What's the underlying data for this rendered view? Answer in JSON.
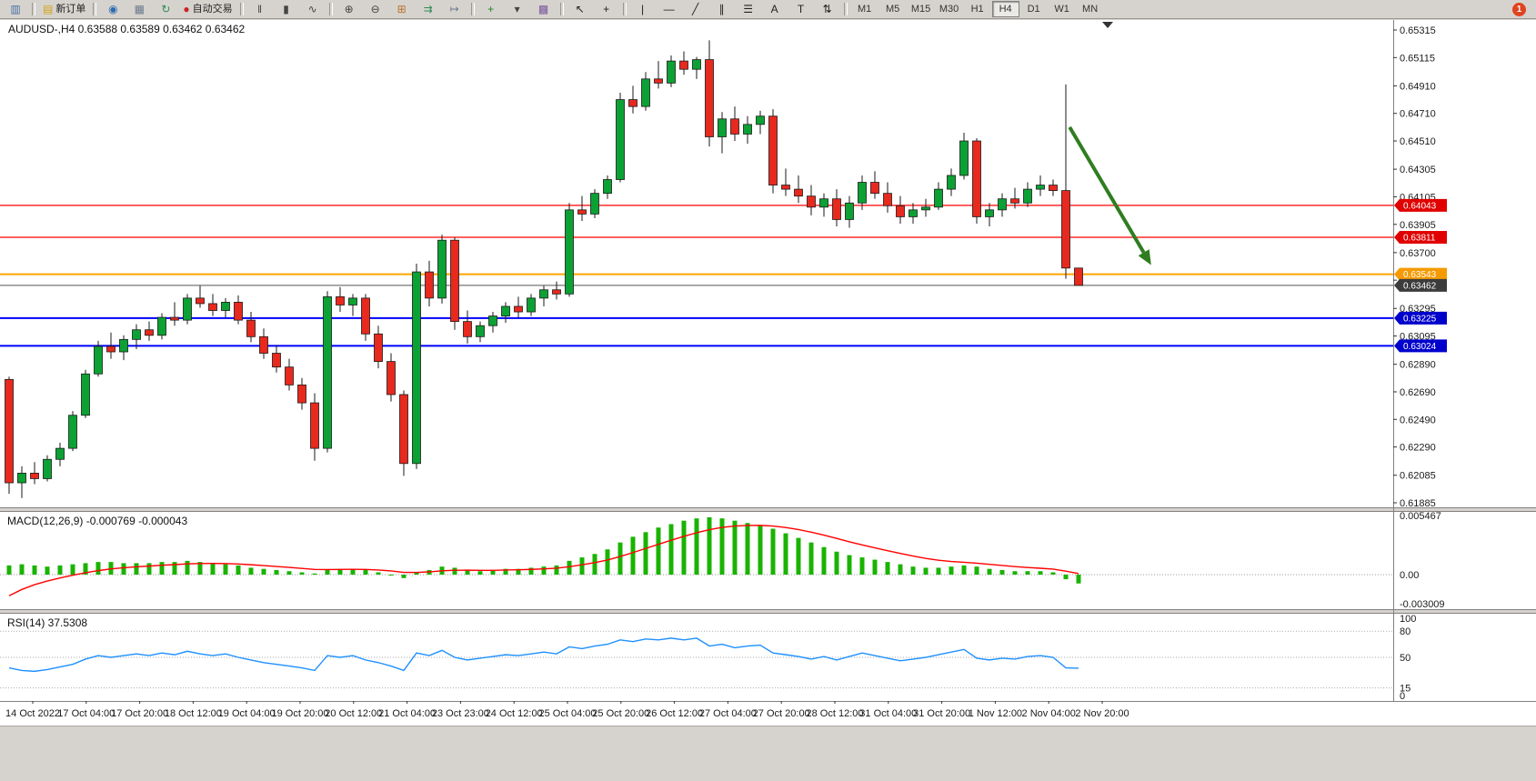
{
  "toolbar": {
    "buttons": [
      {
        "name": "new-chart-button",
        "glyph": "▥",
        "color": "#4a6fa5"
      },
      {
        "name": "sep"
      },
      {
        "name": "new-order-button",
        "glyph": "▤",
        "color": "#d4a017",
        "label": "新订单"
      },
      {
        "name": "sep"
      },
      {
        "name": "mql5-community-icon-button",
        "glyph": "◉",
        "color": "#2b6cb0"
      },
      {
        "name": "data-window-icon-button",
        "glyph": "▦",
        "color": "#6b7a8c"
      },
      {
        "name": "refresh-icon-button",
        "glyph": "↻",
        "color": "#2e8b57"
      },
      {
        "name": "autotrading-button",
        "glyph": "●",
        "color": "#cc2222",
        "label": "自动交易"
      },
      {
        "name": "sep"
      },
      {
        "name": "bar-chart-type-button",
        "glyph": "‖",
        "color": "#444444"
      },
      {
        "name": "candlestick-chart-type-button",
        "glyph": "▮",
        "color": "#444444"
      },
      {
        "name": "line-chart-type-button",
        "glyph": "∿",
        "color": "#444444"
      },
      {
        "name": "sep"
      },
      {
        "name": "zoom-in-button",
        "glyph": "⊕",
        "color": "#444444"
      },
      {
        "name": "zoom-out-button",
        "glyph": "⊖",
        "color": "#444444"
      },
      {
        "name": "tile-windows-button",
        "glyph": "⊞",
        "color": "#b8722c"
      },
      {
        "name": "auto-scroll-button",
        "glyph": "⇉",
        "color": "#2e8b57"
      },
      {
        "name": "chart-shift-button",
        "glyph": "↦",
        "color": "#6b7a8c"
      },
      {
        "name": "sep"
      },
      {
        "name": "indicators-list-button",
        "glyph": "+",
        "color": "#1d8a1d"
      },
      {
        "name": "periods-dropdown-button",
        "glyph": "▾",
        "color": "#444444"
      },
      {
        "name": "templates-button",
        "glyph": "▩",
        "color": "#7a5aa0"
      },
      {
        "name": "sep"
      },
      {
        "name": "cursor-button",
        "glyph": "↖",
        "color": "#222222"
      },
      {
        "name": "crosshair-button",
        "glyph": "+",
        "color": "#222222"
      },
      {
        "name": "sep"
      },
      {
        "name": "vertical-line-button",
        "glyph": "|",
        "color": "#222222"
      },
      {
        "name": "horizontal-line-button",
        "glyph": "—",
        "color": "#222222"
      },
      {
        "name": "trendline-button",
        "glyph": "╱",
        "color": "#222222"
      },
      {
        "name": "equidistant-channel-button",
        "glyph": "∥",
        "color": "#222222"
      },
      {
        "name": "fibonacci-button",
        "glyph": "☰",
        "color": "#222222"
      },
      {
        "name": "text-button",
        "glyph": "A",
        "color": "#222222"
      },
      {
        "name": "text-label-button",
        "glyph": "T",
        "color": "#222222"
      },
      {
        "name": "arrows-button",
        "glyph": "⇅",
        "color": "#222222"
      },
      {
        "name": "sep"
      }
    ],
    "timeframes": [
      "M1",
      "M5",
      "M15",
      "M30",
      "H1",
      "H4",
      "D1",
      "W1",
      "MN"
    ],
    "active_timeframe": "H4",
    "notification_badge": "1"
  },
  "chart": {
    "title_text": "AUDUSD-,H4 0.63588 0.63589 0.63462 0.63462",
    "symbol": "AUDUSD-",
    "period": "H4"
  },
  "indicators": {
    "macd_label": "MACD(12,26,9) -0.000769 -0.000043",
    "rsi_label": "RSI(14) 37.5308"
  },
  "chart_data": {
    "type": "candlestick",
    "symbol": "AUDUSD",
    "timeframe": "H4",
    "colors": {
      "bull": "#0CA134",
      "bear": "#E8291E",
      "wick": "#1a1a1a",
      "background": "#FFFFFF"
    },
    "price_axis": {
      "ticks": [
        0.65315,
        0.65115,
        0.6491,
        0.6471,
        0.6451,
        0.64305,
        0.64105,
        0.63905,
        0.637,
        0.635,
        0.63295,
        0.63095,
        0.6289,
        0.6269,
        0.6249,
        0.6229,
        0.62085,
        0.61885
      ]
    },
    "time_labels": [
      "14 Oct 2022",
      "17 Oct 04:00",
      "17 Oct 20:00",
      "18 Oct 12:00",
      "19 Oct 04:00",
      "19 Oct 20:00",
      "20 Oct 12:00",
      "21 Oct 04:00",
      "23 Oct 23:00",
      "24 Oct 12:00",
      "25 Oct 04:00",
      "25 Oct 20:00",
      "26 Oct 12:00",
      "27 Oct 04:00",
      "27 Oct 20:00",
      "28 Oct 12:00",
      "31 Oct 04:00",
      "31 Oct 20:00",
      "1 Nov 12:00",
      "2 Nov 04:00",
      "2 Nov 20:00"
    ],
    "candles": [
      [
        0.6278,
        0.628,
        0.6195,
        0.6203
      ],
      [
        0.6203,
        0.6215,
        0.6192,
        0.621
      ],
      [
        0.621,
        0.6218,
        0.6202,
        0.6206
      ],
      [
        0.6206,
        0.6223,
        0.6204,
        0.622
      ],
      [
        0.622,
        0.6232,
        0.6215,
        0.6228
      ],
      [
        0.6228,
        0.6255,
        0.6226,
        0.6252
      ],
      [
        0.6252,
        0.6285,
        0.625,
        0.6282
      ],
      [
        0.6282,
        0.6306,
        0.628,
        0.6302
      ],
      [
        0.6302,
        0.6312,
        0.6293,
        0.6298
      ],
      [
        0.6298,
        0.631,
        0.6292,
        0.6307
      ],
      [
        0.6307,
        0.6318,
        0.63,
        0.6314
      ],
      [
        0.6314,
        0.632,
        0.6306,
        0.631
      ],
      [
        0.631,
        0.6326,
        0.6307,
        0.6323
      ],
      [
        0.6323,
        0.6334,
        0.6317,
        0.6321
      ],
      [
        0.6321,
        0.634,
        0.6318,
        0.6337
      ],
      [
        0.6337,
        0.6346,
        0.633,
        0.6333
      ],
      [
        0.6333,
        0.634,
        0.6324,
        0.6328
      ],
      [
        0.6328,
        0.6337,
        0.6323,
        0.6334
      ],
      [
        0.6334,
        0.6339,
        0.6318,
        0.6321
      ],
      [
        0.6321,
        0.6327,
        0.6305,
        0.6309
      ],
      [
        0.6309,
        0.6315,
        0.6293,
        0.6297
      ],
      [
        0.6297,
        0.6303,
        0.6283,
        0.6287
      ],
      [
        0.6287,
        0.6293,
        0.627,
        0.6274
      ],
      [
        0.6274,
        0.6279,
        0.6256,
        0.6261
      ],
      [
        0.6261,
        0.6268,
        0.6219,
        0.6228
      ],
      [
        0.6228,
        0.6342,
        0.6225,
        0.6338
      ],
      [
        0.6338,
        0.6345,
        0.6327,
        0.6332
      ],
      [
        0.6332,
        0.634,
        0.6324,
        0.6337
      ],
      [
        0.6337,
        0.634,
        0.6306,
        0.6311
      ],
      [
        0.6311,
        0.6317,
        0.6286,
        0.6291
      ],
      [
        0.6291,
        0.6297,
        0.6262,
        0.6267
      ],
      [
        0.6267,
        0.627,
        0.6208,
        0.6217
      ],
      [
        0.6217,
        0.6362,
        0.6213,
        0.6356
      ],
      [
        0.6356,
        0.6364,
        0.6331,
        0.6337
      ],
      [
        0.6337,
        0.6383,
        0.6333,
        0.6379
      ],
      [
        0.6379,
        0.6381,
        0.6314,
        0.632
      ],
      [
        0.632,
        0.6328,
        0.6304,
        0.6309
      ],
      [
        0.6309,
        0.632,
        0.6305,
        0.6317
      ],
      [
        0.6317,
        0.6327,
        0.6312,
        0.6324
      ],
      [
        0.6324,
        0.6334,
        0.6319,
        0.6331
      ],
      [
        0.6331,
        0.6338,
        0.6323,
        0.6327
      ],
      [
        0.6327,
        0.634,
        0.6324,
        0.6337
      ],
      [
        0.6337,
        0.6346,
        0.6331,
        0.6343
      ],
      [
        0.6343,
        0.6349,
        0.6336,
        0.634
      ],
      [
        0.634,
        0.6406,
        0.6338,
        0.6401
      ],
      [
        0.6401,
        0.6411,
        0.6393,
        0.6398
      ],
      [
        0.6398,
        0.6416,
        0.6395,
        0.6413
      ],
      [
        0.6413,
        0.6426,
        0.6409,
        0.6423
      ],
      [
        0.6423,
        0.6486,
        0.6421,
        0.6481
      ],
      [
        0.6481,
        0.6491,
        0.6471,
        0.6476
      ],
      [
        0.6476,
        0.6501,
        0.6473,
        0.6496
      ],
      [
        0.6496,
        0.6509,
        0.6489,
        0.6493
      ],
      [
        0.6493,
        0.6513,
        0.649,
        0.6509
      ],
      [
        0.6509,
        0.6516,
        0.6499,
        0.6503
      ],
      [
        0.6503,
        0.6512,
        0.6496,
        0.651
      ],
      [
        0.651,
        0.6524,
        0.6447,
        0.6454
      ],
      [
        0.6454,
        0.6472,
        0.6442,
        0.6467
      ],
      [
        0.6467,
        0.6476,
        0.6451,
        0.6456
      ],
      [
        0.6456,
        0.6469,
        0.6449,
        0.6463
      ],
      [
        0.6463,
        0.6473,
        0.6456,
        0.6469
      ],
      [
        0.6469,
        0.6474,
        0.6413,
        0.6419
      ],
      [
        0.6419,
        0.6431,
        0.6411,
        0.6416
      ],
      [
        0.6416,
        0.6426,
        0.6406,
        0.6411
      ],
      [
        0.6411,
        0.6419,
        0.6397,
        0.6403
      ],
      [
        0.6403,
        0.6413,
        0.6396,
        0.6409
      ],
      [
        0.6409,
        0.6416,
        0.6389,
        0.6394
      ],
      [
        0.6394,
        0.6411,
        0.6388,
        0.6406
      ],
      [
        0.6406,
        0.6426,
        0.6401,
        0.6421
      ],
      [
        0.6421,
        0.6429,
        0.6409,
        0.6413
      ],
      [
        0.6413,
        0.6421,
        0.6399,
        0.6404
      ],
      [
        0.6404,
        0.6411,
        0.6391,
        0.6396
      ],
      [
        0.6396,
        0.6406,
        0.6391,
        0.6401
      ],
      [
        0.6401,
        0.6409,
        0.6396,
        0.6403
      ],
      [
        0.6403,
        0.6421,
        0.6401,
        0.6416
      ],
      [
        0.6416,
        0.6431,
        0.6411,
        0.6426
      ],
      [
        0.6426,
        0.6457,
        0.6423,
        0.6451
      ],
      [
        0.6451,
        0.6453,
        0.6391,
        0.6396
      ],
      [
        0.6396,
        0.6406,
        0.6389,
        0.6401
      ],
      [
        0.6401,
        0.6413,
        0.6396,
        0.6409
      ],
      [
        0.6409,
        0.6417,
        0.6402,
        0.6406
      ],
      [
        0.6406,
        0.6421,
        0.6403,
        0.6416
      ],
      [
        0.6416,
        0.6426,
        0.6411,
        0.6419
      ],
      [
        0.6419,
        0.6423,
        0.6411,
        0.6415
      ],
      [
        0.6415,
        0.6492,
        0.6351,
        0.63588
      ],
      [
        0.63588,
        0.63589,
        0.63462,
        0.63462
      ]
    ],
    "hlines": [
      {
        "price": 0.64043,
        "label": "0.64043",
        "color": "#FF0000",
        "width": 1.2,
        "tag": "#E00000"
      },
      {
        "price": 0.63811,
        "label": "0.63811",
        "color": "#FF0000",
        "width": 1.2,
        "tag": "#E00000"
      },
      {
        "price": 0.63543,
        "label": "0.63543",
        "color": "#FFA500",
        "width": 2,
        "tag": "#F59A00"
      },
      {
        "price": 0.63462,
        "label": "0.63462",
        "color": "#555555",
        "width": 1,
        "tag": "#3C3C3C"
      },
      {
        "price": 0.63225,
        "label": "0.63225",
        "color": "#0000FF",
        "width": 2,
        "tag": "#0000CC"
      },
      {
        "price": 0.63024,
        "label": "0.63024",
        "color": "#0000FF",
        "width": 2,
        "tag": "#0000CC"
      }
    ],
    "current_price": {
      "bid": 0.63462,
      "label": "0.63462"
    },
    "arrow_object": {
      "from": {
        "index": 83.3,
        "price": 0.6461
      },
      "to": {
        "index": 89.7,
        "price": 0.6361
      },
      "color": "#2F7D1F"
    },
    "macd": {
      "label": "MACD(12,26,9)",
      "value": -0.000769,
      "signal_value": -4.3e-05,
      "axis_max": 0.005467,
      "axis_min": -0.003009,
      "axis_ticks": [
        "0.005467",
        "0.00",
        "-0.003009"
      ],
      "histogram_color": "#19B300",
      "signal_color": "#FF0000",
      "signal_seed": -0.0025,
      "signal_period": 9,
      "histogram": [
        0.0008,
        0.0009,
        0.0008,
        0.0007,
        0.0008,
        0.0009,
        0.001,
        0.0011,
        0.0011,
        0.001,
        0.001,
        0.001,
        0.0011,
        0.0011,
        0.0012,
        0.0011,
        0.001,
        0.0009,
        0.0008,
        0.0006,
        0.0005,
        0.0004,
        0.0003,
        0.0002,
        0.0001,
        0.0004,
        0.0005,
        0.0005,
        0.0004,
        0.0002,
        0.0,
        -0.0003,
        0.0002,
        0.0004,
        0.0007,
        0.0006,
        0.0004,
        0.0003,
        0.0004,
        0.0005,
        0.0005,
        0.0006,
        0.0007,
        0.0008,
        0.0012,
        0.0015,
        0.0018,
        0.0022,
        0.0028,
        0.0033,
        0.0037,
        0.0041,
        0.0044,
        0.0047,
        0.0049,
        0.005,
        0.0049,
        0.0047,
        0.0045,
        0.0043,
        0.004,
        0.0036,
        0.0032,
        0.0028,
        0.0024,
        0.002,
        0.0017,
        0.0015,
        0.0013,
        0.0011,
        0.0009,
        0.0007,
        0.0006,
        0.0006,
        0.0007,
        0.0008,
        0.0007,
        0.0005,
        0.0004,
        0.0003,
        0.0003,
        0.0003,
        0.0002,
        -0.0004,
        -0.000769
      ]
    },
    "rsi": {
      "label": "RSI(14)",
      "value": 37.5308,
      "color": "#1E90FF",
      "levels": [
        80,
        50,
        15
      ],
      "axis_ticks": [
        {
          "text": "100",
          "value": 100
        },
        {
          "text": "80",
          "value": 80
        },
        {
          "text": "50",
          "value": 50
        },
        {
          "text": "15",
          "value": 15
        },
        {
          "text": "0",
          "value": 0
        }
      ],
      "values": [
        38,
        35,
        34,
        36,
        39,
        42,
        48,
        52,
        50,
        52,
        54,
        52,
        55,
        53,
        57,
        54,
        52,
        54,
        50,
        47,
        44,
        42,
        40,
        38,
        35,
        52,
        50,
        52,
        47,
        44,
        40,
        35,
        55,
        52,
        58,
        50,
        47,
        49,
        51,
        53,
        52,
        54,
        56,
        54,
        62,
        60,
        63,
        65,
        70,
        68,
        71,
        70,
        72,
        70,
        72,
        63,
        65,
        61,
        63,
        64,
        55,
        53,
        51,
        48,
        51,
        47,
        51,
        55,
        52,
        49,
        46,
        48,
        50,
        53,
        56,
        59,
        49,
        47,
        49,
        48,
        51,
        52,
        50,
        38,
        37.5308
      ]
    }
  }
}
